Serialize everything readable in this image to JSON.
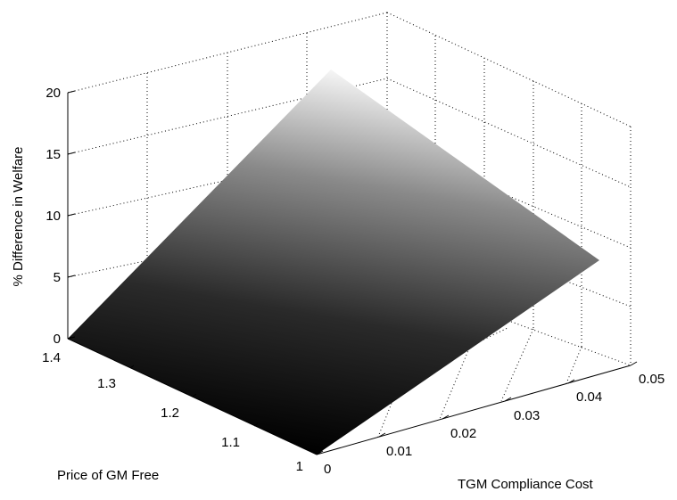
{
  "chart_data": {
    "type": "surface",
    "title": "",
    "xlabel": "TGM Compliance Cost",
    "ylabel": "Price of GM Free",
    "zlabel": "% Difference in Welfare",
    "x_ticks": [
      "0",
      "0.01",
      "0.02",
      "0.03",
      "0.04",
      "0.05"
    ],
    "y_ticks": [
      "1",
      "1.1",
      "1.2",
      "1.3",
      "1.4"
    ],
    "z_ticks": [
      "0",
      "5",
      "10",
      "15",
      "20"
    ],
    "xlim": [
      0,
      0.05
    ],
    "ylim": [
      1,
      1.4
    ],
    "zlim": [
      0,
      20
    ],
    "grid": true,
    "colormap": "gray",
    "surface_corners": [
      {
        "x": 0,
        "y": 1,
        "z": 0
      },
      {
        "x": 0.05,
        "y": 1,
        "z": 7.2
      },
      {
        "x": 0.05,
        "y": 1.4,
        "z": 21.5
      },
      {
        "x": 0,
        "y": 1.4,
        "z": 0
      }
    ]
  }
}
